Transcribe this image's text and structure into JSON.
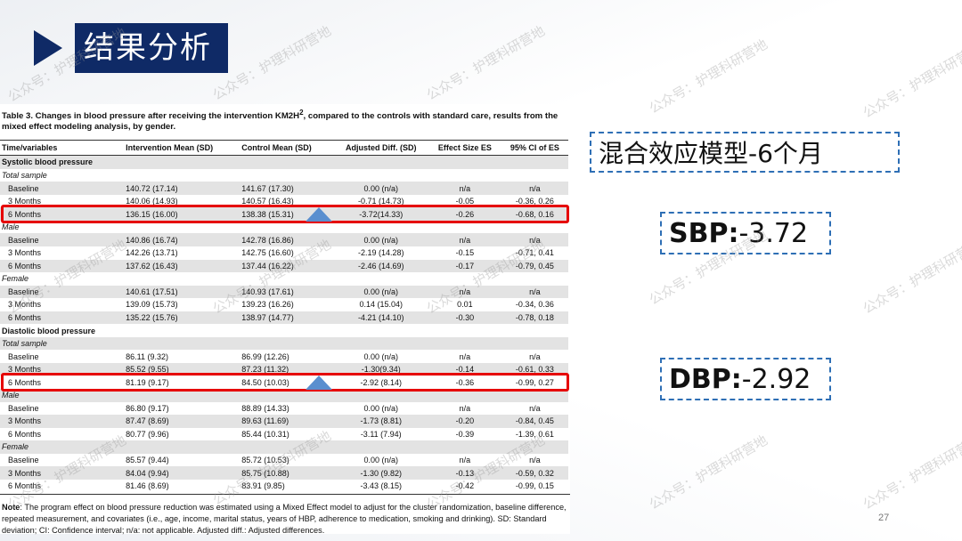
{
  "slide_title": "结果分析",
  "table": {
    "caption_pre": "Table 3. Changes in blood pressure after receiving the intervention KM2H",
    "caption_sup": "2",
    "caption_post": ", compared to the controls with standard care, results from the mixed effect modeling analysis, by gender.",
    "headers": [
      "Time/variables",
      "Intervention Mean (SD)",
      "Control Mean (SD)",
      "Adjusted Diff. (SD)",
      "Effect Size ES",
      "95% CI of ES"
    ],
    "rows": [
      {
        "kind": "sec",
        "cells": [
          "Systolic blood pressure",
          "",
          "",
          "",
          "",
          ""
        ]
      },
      {
        "kind": "grp",
        "cells": [
          "Total sample",
          "",
          "",
          "",
          "",
          ""
        ]
      },
      {
        "kind": "data",
        "cells": [
          "Baseline",
          "140.72 (17.14)",
          "141.67 (17.30)",
          "0.00 (n/a)",
          "n/a",
          "n/a"
        ]
      },
      {
        "kind": "data",
        "cells": [
          "3 Months",
          "140.06 (14.93)",
          "140.57 (16.43)",
          "-0.71 (14.73)",
          "-0.05",
          "-0.36, 0.26"
        ]
      },
      {
        "kind": "data",
        "cells": [
          "6 Months",
          "136.15 (16.00)",
          "138.38 (15.31)",
          "-3.72(14.33)",
          "-0.26",
          "-0.68, 0.16"
        ]
      },
      {
        "kind": "grp",
        "cells": [
          "Male",
          "",
          "",
          "",
          "",
          ""
        ]
      },
      {
        "kind": "data",
        "cells": [
          "Baseline",
          "140.86 (16.74)",
          "142.78 (16.86)",
          "0.00 (n/a)",
          "n/a",
          "n/a"
        ]
      },
      {
        "kind": "data",
        "cells": [
          "3 Months",
          "142.26 (13.71)",
          "142.75 (16.60)",
          "-2.19 (14.28)",
          "-0.15",
          "-0.71, 0.41"
        ]
      },
      {
        "kind": "data",
        "cells": [
          "6 Months",
          "137.62 (16.43)",
          "137.44 (16.22)",
          "-2.46 (14.69)",
          "-0.17",
          "-0.79, 0.45"
        ]
      },
      {
        "kind": "grp",
        "cells": [
          "Female",
          "",
          "",
          "",
          "",
          ""
        ]
      },
      {
        "kind": "data",
        "cells": [
          "Baseline",
          "140.61 (17.51)",
          "140.93 (17.61)",
          "0.00 (n/a)",
          "n/a",
          "n/a"
        ]
      },
      {
        "kind": "data",
        "cells": [
          "3 Months",
          "139.09 (15.73)",
          "139.23 (16.26)",
          "0.14 (15.04)",
          "0.01",
          "-0.34, 0.36"
        ]
      },
      {
        "kind": "data",
        "cells": [
          "6 Months",
          "135.22 (15.76)",
          "138.97 (14.77)",
          "-4.21 (14.10)",
          "-0.30",
          "-0.78, 0.18"
        ]
      },
      {
        "kind": "sec",
        "cells": [
          "Diastolic blood pressure",
          "",
          "",
          "",
          "",
          ""
        ]
      },
      {
        "kind": "grp",
        "cells": [
          "Total sample",
          "",
          "",
          "",
          "",
          ""
        ]
      },
      {
        "kind": "data",
        "cells": [
          "Baseline",
          "86.11 (9.32)",
          "86.99 (12.26)",
          "0.00 (n/a)",
          "n/a",
          "n/a"
        ]
      },
      {
        "kind": "data",
        "cells": [
          "3 Months",
          "85.52 (9.55)",
          "87.23 (11.32)",
          "-1.30(9.34)",
          "-0.14",
          "-0.61, 0.33"
        ]
      },
      {
        "kind": "data",
        "cells": [
          "6 Months",
          "81.19 (9.17)",
          "84.50 (10.03)",
          "-2.92 (8.14)",
          "-0.36",
          "-0.99, 0.27"
        ]
      },
      {
        "kind": "grp",
        "cells": [
          "Male",
          "",
          "",
          "",
          "",
          ""
        ]
      },
      {
        "kind": "data",
        "cells": [
          "Baseline",
          "86.80 (9.17)",
          "88.89 (14.33)",
          "0.00 (n/a)",
          "n/a",
          "n/a"
        ]
      },
      {
        "kind": "data",
        "cells": [
          "3 Months",
          "87.47 (8.69)",
          "89.63 (11.69)",
          "-1.73 (8.81)",
          "-0.20",
          "-0.84, 0.45"
        ]
      },
      {
        "kind": "data",
        "cells": [
          "6 Months",
          "80.77 (9.96)",
          "85.44 (10.31)",
          "-3.11 (7.94)",
          "-0.39",
          "-1.39, 0.61"
        ]
      },
      {
        "kind": "grp",
        "cells": [
          "Female",
          "",
          "",
          "",
          "",
          ""
        ]
      },
      {
        "kind": "data",
        "cells": [
          "Baseline",
          "85.57 (9.44)",
          "85.72 (10.53)",
          "0.00 (n/a)",
          "n/a",
          "n/a"
        ]
      },
      {
        "kind": "data",
        "cells": [
          "3 Months",
          "84.04 (9.94)",
          "85.75 (10.88)",
          "-1.30 (9.82)",
          "-0.13",
          "-0.59, 0.32"
        ]
      },
      {
        "kind": "data",
        "cells": [
          "6 Months",
          "81.46 (8.69)",
          "83.91 (9.85)",
          "-3.43 (8.15)",
          "-0.42",
          "-0.99, 0.15"
        ]
      }
    ],
    "note_label": "Note",
    "note_text": ": The program effect on blood pressure reduction was estimated using a Mixed Effect model to adjust for the cluster randomization, baseline difference, repeated measurement, and covariates (i.e., age, income, marital status, years of HBP, adherence to medication, smoking and drinking). SD: Standard deviation; CI: Confidence interval; n/a: not applicable. Adjusted diff.: Adjusted differences."
  },
  "callouts": {
    "model_label": "混合效应模型-6个月",
    "sbp_label": "SBP:",
    "sbp_value": "-3.72",
    "dbp_label": "DBP:",
    "dbp_value": "-2.92"
  },
  "watermark_text": "公众号：护理科研营地",
  "page_number": "27",
  "colors": {
    "title_bg": "#0f2a66",
    "highlight": "#e60000",
    "dash": "#2e6fb5",
    "triangle": "#5a8fcf",
    "band": "#e3e3e3"
  }
}
